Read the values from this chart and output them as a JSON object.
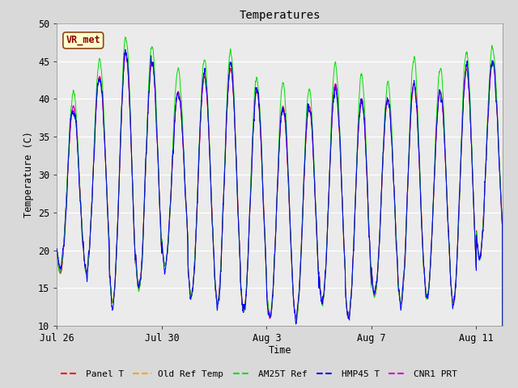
{
  "title": "Temperatures",
  "ylabel": "Temperature (C)",
  "xlabel": "Time",
  "annotation": "VR_met",
  "ylim": [
    10,
    50
  ],
  "y_ticks": [
    10,
    15,
    20,
    25,
    30,
    35,
    40,
    45,
    50
  ],
  "x_tick_labels": [
    "Jul 26",
    "Jul 30",
    "Aug 3",
    "Aug 7",
    "Aug 11"
  ],
  "x_tick_positions": [
    0,
    4,
    8,
    12,
    16
  ],
  "series": {
    "Panel T": {
      "color": "#ff0000"
    },
    "Old Ref Temp": {
      "color": "#ffa500"
    },
    "AM25T Ref": {
      "color": "#00dd00"
    },
    "HMP45 T": {
      "color": "#0000ff"
    },
    "CNR1 PRT": {
      "color": "#cc00cc"
    }
  },
  "bg_color": "#d9d9d9",
  "plot_bg": "#ebebeb",
  "n_days": 17,
  "seed": 42
}
